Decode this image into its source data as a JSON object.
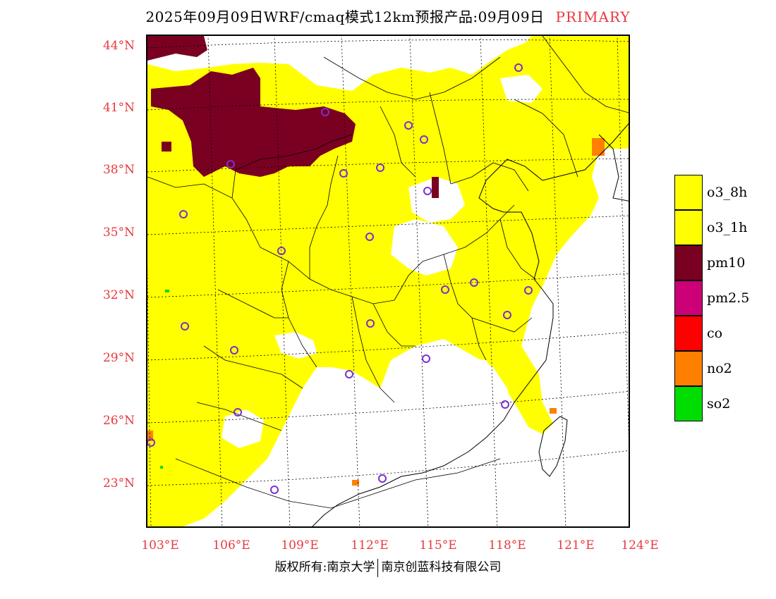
{
  "title": {
    "main": "2025年09月09日WRF/cmaq模式12km预报产品:09月09日",
    "tag": "PRIMARY"
  },
  "map": {
    "lat_ticks": [
      "44°N",
      "41°N",
      "38°N",
      "35°N",
      "32°N",
      "29°N",
      "26°N",
      "23°N"
    ],
    "lon_ticks": [
      "103°E",
      "106°E",
      "109°E",
      "112°E",
      "115°E",
      "118°E",
      "121°E",
      "124°E"
    ]
  },
  "legend": [
    {
      "label": "o3_8h",
      "color": "#ffff00"
    },
    {
      "label": "o3_1h",
      "color": "#ffff00"
    },
    {
      "label": "pm10",
      "color": "#7a0022"
    },
    {
      "label": "pm2.5",
      "color": "#cc0077"
    },
    {
      "label": "co",
      "color": "#ff0000"
    },
    {
      "label": "no2",
      "color": "#ff7f00"
    },
    {
      "label": "so2",
      "color": "#00dd00"
    }
  ],
  "colors": {
    "o3": "#ffff00",
    "pm10": "#7a0022",
    "no2": "#ff7f00",
    "so2": "#00dd00",
    "station_ring": "#7b2fd0",
    "tick": "#e8383d"
  },
  "footer": {
    "left": "版权所有:南京大学",
    "right": "南京创蓝科技有限公司"
  }
}
